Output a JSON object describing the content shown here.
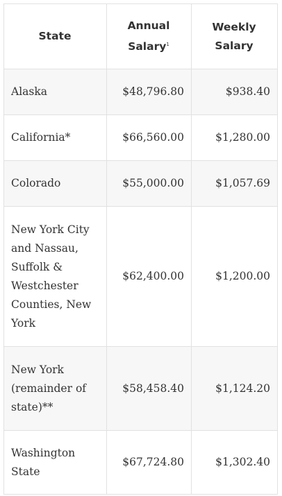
{
  "headers": {
    "state": "State",
    "annual": "Annual Salary",
    "annual_note": "1",
    "weekly": "Weekly Salary"
  },
  "rows": [
    {
      "state": "Alaska",
      "annual": "$48,796.80",
      "weekly": "$938.40"
    },
    {
      "state": "California*",
      "annual": "$66,560.00",
      "weekly": "$1,280.00"
    },
    {
      "state": "Colorado",
      "annual": "$55,000.00",
      "weekly": "$1,057.69"
    },
    {
      "state": "New York City and Nassau, Suffolk & Westchester Counties, New York",
      "annual": "$62,400.00",
      "weekly": "$1,200.00"
    },
    {
      "state": "New York (remainder of state)**",
      "annual": "$58,458.40",
      "weekly": "$1,124.20"
    },
    {
      "state": "Washington State",
      "annual": "$67,724.80",
      "weekly": "$1,302.40"
    }
  ]
}
